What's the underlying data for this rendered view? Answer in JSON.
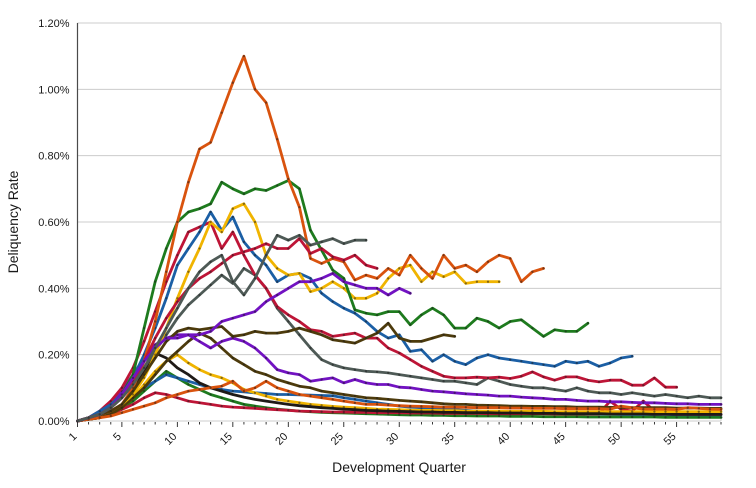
{
  "figure": {
    "background": "#ffffff",
    "grid_color": "#cccccc",
    "left_spine_color": "#4a4a4a",
    "right_spine_color": "#cccccc",
    "tick_color": "#222222",
    "marker_color": "#1a1a1a",
    "label_color": "#1a1a1a"
  },
  "chart_data": {
    "type": "line",
    "title": "",
    "xlabel": "Development Quarter",
    "ylabel": "Deliquency Rate",
    "grid": "horizontal-only",
    "legend": "none",
    "markers": "small dark dots at every quarter",
    "x_axis": {
      "min": 1,
      "max": 59,
      "minor_tick_step": 1,
      "tick_labels": [
        1,
        5,
        10,
        15,
        20,
        25,
        30,
        35,
        40,
        45,
        50,
        55
      ],
      "tick_label_rotation_deg": -45
    },
    "y_axis": {
      "min": 0,
      "max": 1.2,
      "unit": "percent",
      "ticks": [
        {
          "value": 0.0,
          "label": "0.00%"
        },
        {
          "value": 0.2,
          "label": "0.20%"
        },
        {
          "value": 0.4,
          "label": "0.40%"
        },
        {
          "value": 0.6,
          "label": "0.60%"
        },
        {
          "value": 0.8,
          "label": "0.80%"
        },
        {
          "value": 1.0,
          "label": "1.00%"
        },
        {
          "value": 1.2,
          "label": "1.20%"
        }
      ]
    },
    "z_order_note": "series listed first are drawn first (behind)",
    "series": [
      {
        "name": "green-low",
        "color": "#1E7B1E",
        "start_quarter": 1,
        "values_percent": [
          0,
          0.005,
          0.01,
          0.02,
          0.04,
          0.06,
          0.09,
          0.12,
          0.15,
          0.13,
          0.11,
          0.095,
          0.08,
          0.07,
          0.06,
          0.05,
          0.045,
          0.04,
          0.036,
          0.033,
          0.03,
          0.028,
          0.026,
          0.025,
          0.024,
          0.023,
          0.022,
          0.021,
          0.02,
          0.019,
          0.018,
          0.018,
          0.017,
          0.017,
          0.016,
          0.016,
          0.015,
          0.015,
          0.015,
          0.014,
          0.014,
          0.014,
          0.013,
          0.013,
          0.013,
          0.013,
          0.012,
          0.012,
          0.012,
          0.012,
          0.012,
          0.012,
          0.012,
          0.011,
          0.011,
          0.011,
          0.011,
          0.011,
          0.011
        ]
      },
      {
        "name": "blue-low",
        "color": "#1B5FA5",
        "start_quarter": 1,
        "values_percent": [
          0,
          0.005,
          0.015,
          0.03,
          0.05,
          0.08,
          0.1,
          0.12,
          0.14,
          0.13,
          0.12,
          0.11,
          0.1,
          0.095,
          0.09,
          0.088,
          0.085,
          0.083,
          0.08,
          0.08,
          0.079,
          0.078,
          0.077,
          0.076,
          0.07,
          0.065,
          0.06,
          0.055,
          0.05,
          0.045,
          0.042,
          0.04,
          0.038,
          0.036,
          0.034,
          0.032,
          0.03,
          0.028,
          0.027,
          0.026,
          0.025,
          0.024,
          0.023,
          0.023,
          0.022,
          0.022,
          0.021,
          0.021,
          0.021,
          0.02,
          0.02,
          0.02,
          0.02,
          0.02,
          0.019,
          0.019,
          0.019,
          0.019,
          0.019
        ]
      },
      {
        "name": "crimson-low",
        "color": "#BE1537",
        "start_quarter": 1,
        "values_percent": [
          0,
          0.005,
          0.01,
          0.02,
          0.035,
          0.05,
          0.07,
          0.085,
          0.08,
          0.07,
          0.06,
          0.055,
          0.05,
          0.045,
          0.042,
          0.04,
          0.038,
          0.036,
          0.034,
          0.032,
          0.03,
          0.029,
          0.028,
          0.027,
          0.027,
          0.026,
          0.026,
          0.025,
          0.025,
          0.025,
          0.024,
          0.024,
          0.024,
          0.023,
          0.023,
          0.023,
          0.023,
          0.022,
          0.022,
          0.022,
          0.022,
          0.022,
          0.022,
          0.021,
          0.021,
          0.021,
          0.021,
          0.021,
          0.06,
          0.035,
          0.03,
          0.06,
          0.03,
          0.022,
          0.02,
          0.02,
          0.02,
          0.02,
          0.02
        ]
      },
      {
        "name": "gold-low",
        "color": "#F0B400",
        "start_quarter": 1,
        "values_percent": [
          0,
          0.005,
          0.01,
          0.02,
          0.04,
          0.07,
          0.11,
          0.15,
          0.18,
          0.2,
          0.175,
          0.155,
          0.14,
          0.13,
          0.115,
          0.095,
          0.085,
          0.075,
          0.065,
          0.06,
          0.055,
          0.05,
          0.047,
          0.044,
          0.042,
          0.04,
          0.038,
          0.036,
          0.035,
          0.034,
          0.033,
          0.032,
          0.032,
          0.031,
          0.031,
          0.03,
          0.03,
          0.03,
          0.03,
          0.029,
          0.029,
          0.029,
          0.029,
          0.028,
          0.028,
          0.028,
          0.028,
          0.028,
          0.028,
          0.028,
          0.028,
          0.028,
          0.028,
          0.028,
          0.028,
          0.028,
          0.028,
          0.028,
          0.028
        ]
      },
      {
        "name": "black-low",
        "color": "#1F1A17",
        "start_quarter": 1,
        "values_percent": [
          0,
          0.005,
          0.01,
          0.02,
          0.05,
          0.09,
          0.15,
          0.205,
          0.19,
          0.16,
          0.14,
          0.115,
          0.1,
          0.09,
          0.08,
          0.072,
          0.065,
          0.06,
          0.055,
          0.05,
          0.046,
          0.043,
          0.04,
          0.038,
          0.036,
          0.034,
          0.032,
          0.031,
          0.03,
          0.029,
          0.028,
          0.027,
          0.027,
          0.026,
          0.026,
          0.025,
          0.025,
          0.025,
          0.024,
          0.024,
          0.024,
          0.023,
          0.023,
          0.023,
          0.022,
          0.022,
          0.022,
          0.022,
          0.021,
          0.021,
          0.021,
          0.021,
          0.02,
          0.02,
          0.02,
          0.02,
          0.02,
          0.02,
          0.02
        ]
      },
      {
        "name": "brown-low",
        "color": "#4D3B0C",
        "start_quarter": 1,
        "values_percent": [
          0,
          0.005,
          0.01,
          0.02,
          0.04,
          0.07,
          0.1,
          0.14,
          0.18,
          0.21,
          0.24,
          0.265,
          0.25,
          0.22,
          0.19,
          0.17,
          0.15,
          0.14,
          0.125,
          0.115,
          0.105,
          0.1,
          0.09,
          0.085,
          0.08,
          0.075,
          0.07,
          0.068,
          0.065,
          0.062,
          0.06,
          0.058,
          0.055,
          0.052,
          0.05,
          0.05,
          0.048,
          0.047,
          0.046,
          0.045,
          0.045,
          0.044,
          0.044,
          0.043,
          0.043,
          0.042,
          0.042,
          0.042,
          0.041,
          0.041,
          0.04,
          0.04,
          0.04,
          0.04,
          0.039,
          0.039,
          0.039,
          0.038,
          0.038
        ]
      },
      {
        "name": "orange-low",
        "color": "#D9530E",
        "start_quarter": 1,
        "values_percent": [
          0,
          0.005,
          0.01,
          0.015,
          0.025,
          0.035,
          0.045,
          0.055,
          0.07,
          0.08,
          0.09,
          0.095,
          0.1,
          0.105,
          0.12,
          0.09,
          0.1,
          0.12,
          0.1,
          0.09,
          0.08,
          0.075,
          0.07,
          0.065,
          0.06,
          0.055,
          0.05,
          0.05,
          0.048,
          0.046,
          0.045,
          0.044,
          0.043,
          0.042,
          0.042,
          0.041,
          0.04,
          0.04,
          0.04,
          0.039,
          0.039,
          0.038,
          0.038,
          0.038,
          0.037,
          0.037,
          0.037,
          0.037,
          0.036,
          0.045,
          0.04,
          0.036,
          0.036,
          0.036,
          0.035,
          0.04,
          0.038,
          0.036,
          0.035
        ]
      },
      {
        "name": "purple-low",
        "color": "#7212C2",
        "start_quarter": 1,
        "values_percent": [
          0,
          0.01,
          0.02,
          0.05,
          0.09,
          0.14,
          0.19,
          0.23,
          0.25,
          0.26,
          0.26,
          0.24,
          0.22,
          0.24,
          0.25,
          0.24,
          0.22,
          0.19,
          0.155,
          0.145,
          0.14,
          0.12,
          0.125,
          0.13,
          0.115,
          0.125,
          0.115,
          0.11,
          0.11,
          0.102,
          0.1,
          0.095,
          0.09,
          0.088,
          0.085,
          0.082,
          0.08,
          0.078,
          0.075,
          0.075,
          0.072,
          0.07,
          0.068,
          0.065,
          0.065,
          0.062,
          0.06,
          0.06,
          0.058,
          0.058,
          0.056,
          0.055,
          0.055,
          0.053,
          0.052,
          0.052,
          0.05,
          0.05,
          0.05
        ]
      },
      {
        "name": "gray-mid",
        "color": "#4E5A56",
        "start_quarter": 1,
        "values_percent": [
          0,
          0.01,
          0.02,
          0.04,
          0.07,
          0.11,
          0.16,
          0.21,
          0.26,
          0.31,
          0.35,
          0.38,
          0.41,
          0.44,
          0.415,
          0.46,
          0.44,
          0.4,
          0.34,
          0.3,
          0.26,
          0.22,
          0.185,
          0.17,
          0.16,
          0.155,
          0.15,
          0.148,
          0.145,
          0.14,
          0.135,
          0.13,
          0.125,
          0.12,
          0.12,
          0.115,
          0.11,
          0.13,
          0.12,
          0.11,
          0.105,
          0.1,
          0.1,
          0.095,
          0.09,
          0.1,
          0.09,
          0.085,
          0.085,
          0.08,
          0.085,
          0.08,
          0.075,
          0.08,
          0.075,
          0.07,
          0.075,
          0.07,
          0.07
        ]
      },
      {
        "name": "crimson-high-early",
        "color": "#BE1537",
        "start_quarter": 1,
        "values_percent": [
          0,
          0.01,
          0.03,
          0.06,
          0.1,
          0.16,
          0.24,
          0.33,
          0.42,
          0.5,
          0.57,
          0.585,
          0.6,
          0.52,
          0.57,
          0.5,
          0.44,
          0.4,
          0.345,
          0.32,
          0.3,
          0.275,
          0.27,
          0.255,
          0.26,
          0.265,
          0.25,
          0.25,
          0.22,
          0.205,
          0.185,
          0.165,
          0.15,
          0.135,
          0.13,
          0.13,
          0.132,
          0.13,
          0.132,
          0.128,
          0.135,
          0.148,
          0.133,
          0.123,
          0.133,
          0.133,
          0.123,
          0.118,
          0.123,
          0.123,
          0.108,
          0.108,
          0.13,
          0.102,
          0.102
        ]
      },
      {
        "name": "blue-high",
        "color": "#1B5FA5",
        "start_quarter": 1,
        "values_percent": [
          0,
          0.01,
          0.03,
          0.05,
          0.08,
          0.13,
          0.2,
          0.28,
          0.37,
          0.47,
          0.52,
          0.57,
          0.63,
          0.575,
          0.615,
          0.54,
          0.5,
          0.47,
          0.42,
          0.44,
          0.445,
          0.43,
          0.385,
          0.36,
          0.34,
          0.325,
          0.3,
          0.27,
          0.25,
          0.26,
          0.21,
          0.215,
          0.18,
          0.2,
          0.18,
          0.17,
          0.19,
          0.2,
          0.19,
          0.185,
          0.18,
          0.175,
          0.17,
          0.165,
          0.18,
          0.175,
          0.18,
          0.165,
          0.175,
          0.19,
          0.195
        ]
      },
      {
        "name": "gold-high",
        "color": "#F0B400",
        "start_quarter": 1,
        "values_percent": [
          0,
          0.01,
          0.02,
          0.03,
          0.05,
          0.08,
          0.13,
          0.2,
          0.28,
          0.37,
          0.45,
          0.52,
          0.6,
          0.57,
          0.64,
          0.655,
          0.6,
          0.5,
          0.46,
          0.44,
          0.445,
          0.39,
          0.4,
          0.42,
          0.4,
          0.37,
          0.37,
          0.385,
          0.43,
          0.46,
          0.47,
          0.42,
          0.45,
          0.435,
          0.45,
          0.415,
          0.42,
          0.42,
          0.42
        ]
      },
      {
        "name": "green-high",
        "color": "#1E7B1E",
        "start_quarter": 1,
        "values_percent": [
          0,
          0.01,
          0.02,
          0.04,
          0.08,
          0.14,
          0.28,
          0.42,
          0.52,
          0.6,
          0.63,
          0.64,
          0.655,
          0.72,
          0.7,
          0.685,
          0.7,
          0.695,
          0.71,
          0.725,
          0.7,
          0.575,
          0.515,
          0.455,
          0.43,
          0.335,
          0.325,
          0.32,
          0.33,
          0.33,
          0.29,
          0.32,
          0.34,
          0.32,
          0.28,
          0.28,
          0.31,
          0.3,
          0.28,
          0.3,
          0.305,
          0.28,
          0.255,
          0.275,
          0.27,
          0.27,
          0.295
        ]
      },
      {
        "name": "orange-high",
        "color": "#D9530E",
        "start_quarter": 1,
        "values_percent": [
          0,
          0.01,
          0.02,
          0.03,
          0.05,
          0.1,
          0.18,
          0.3,
          0.45,
          0.6,
          0.72,
          0.82,
          0.84,
          0.93,
          1.02,
          1.1,
          1.0,
          0.96,
          0.85,
          0.73,
          0.645,
          0.49,
          0.475,
          0.49,
          0.48,
          0.425,
          0.44,
          0.43,
          0.46,
          0.44,
          0.5,
          0.46,
          0.43,
          0.5,
          0.46,
          0.47,
          0.45,
          0.48,
          0.5,
          0.49,
          0.42,
          0.45,
          0.46
        ]
      },
      {
        "name": "crimson-mid-late",
        "color": "#BE1537",
        "start_quarter": 1,
        "values_percent": [
          0,
          0.01,
          0.02,
          0.04,
          0.07,
          0.12,
          0.18,
          0.25,
          0.31,
          0.36,
          0.4,
          0.43,
          0.45,
          0.475,
          0.5,
          0.51,
          0.52,
          0.535,
          0.52,
          0.52,
          0.55,
          0.505,
          0.52,
          0.495,
          0.485,
          0.5,
          0.47,
          0.46
        ]
      },
      {
        "name": "brown-mid",
        "color": "#4D3B0C",
        "start_quarter": 1,
        "values_percent": [
          0,
          0.01,
          0.02,
          0.03,
          0.05,
          0.09,
          0.14,
          0.19,
          0.24,
          0.27,
          0.28,
          0.275,
          0.28,
          0.285,
          0.255,
          0.26,
          0.27,
          0.265,
          0.265,
          0.27,
          0.28,
          0.27,
          0.26,
          0.245,
          0.24,
          0.235,
          0.25,
          0.265,
          0.295,
          0.25,
          0.24,
          0.24,
          0.25,
          0.26,
          0.255
        ]
      },
      {
        "name": "purple-mid",
        "color": "#7212C2",
        "start_quarter": 1,
        "values_percent": [
          0,
          0.01,
          0.02,
          0.04,
          0.08,
          0.13,
          0.18,
          0.22,
          0.25,
          0.25,
          0.26,
          0.26,
          0.27,
          0.3,
          0.31,
          0.32,
          0.33,
          0.36,
          0.38,
          0.4,
          0.42,
          0.42,
          0.43,
          0.445,
          0.42,
          0.41,
          0.4,
          0.4,
          0.38,
          0.4,
          0.385
        ]
      },
      {
        "name": "gray-short",
        "color": "#4E5A56",
        "start_quarter": 1,
        "values_percent": [
          0,
          0.01,
          0.02,
          0.04,
          0.07,
          0.11,
          0.16,
          0.22,
          0.28,
          0.34,
          0.4,
          0.45,
          0.48,
          0.5,
          0.42,
          0.38,
          0.43,
          0.5,
          0.56,
          0.545,
          0.56,
          0.53,
          0.54,
          0.55,
          0.535,
          0.545,
          0.545
        ]
      }
    ]
  }
}
